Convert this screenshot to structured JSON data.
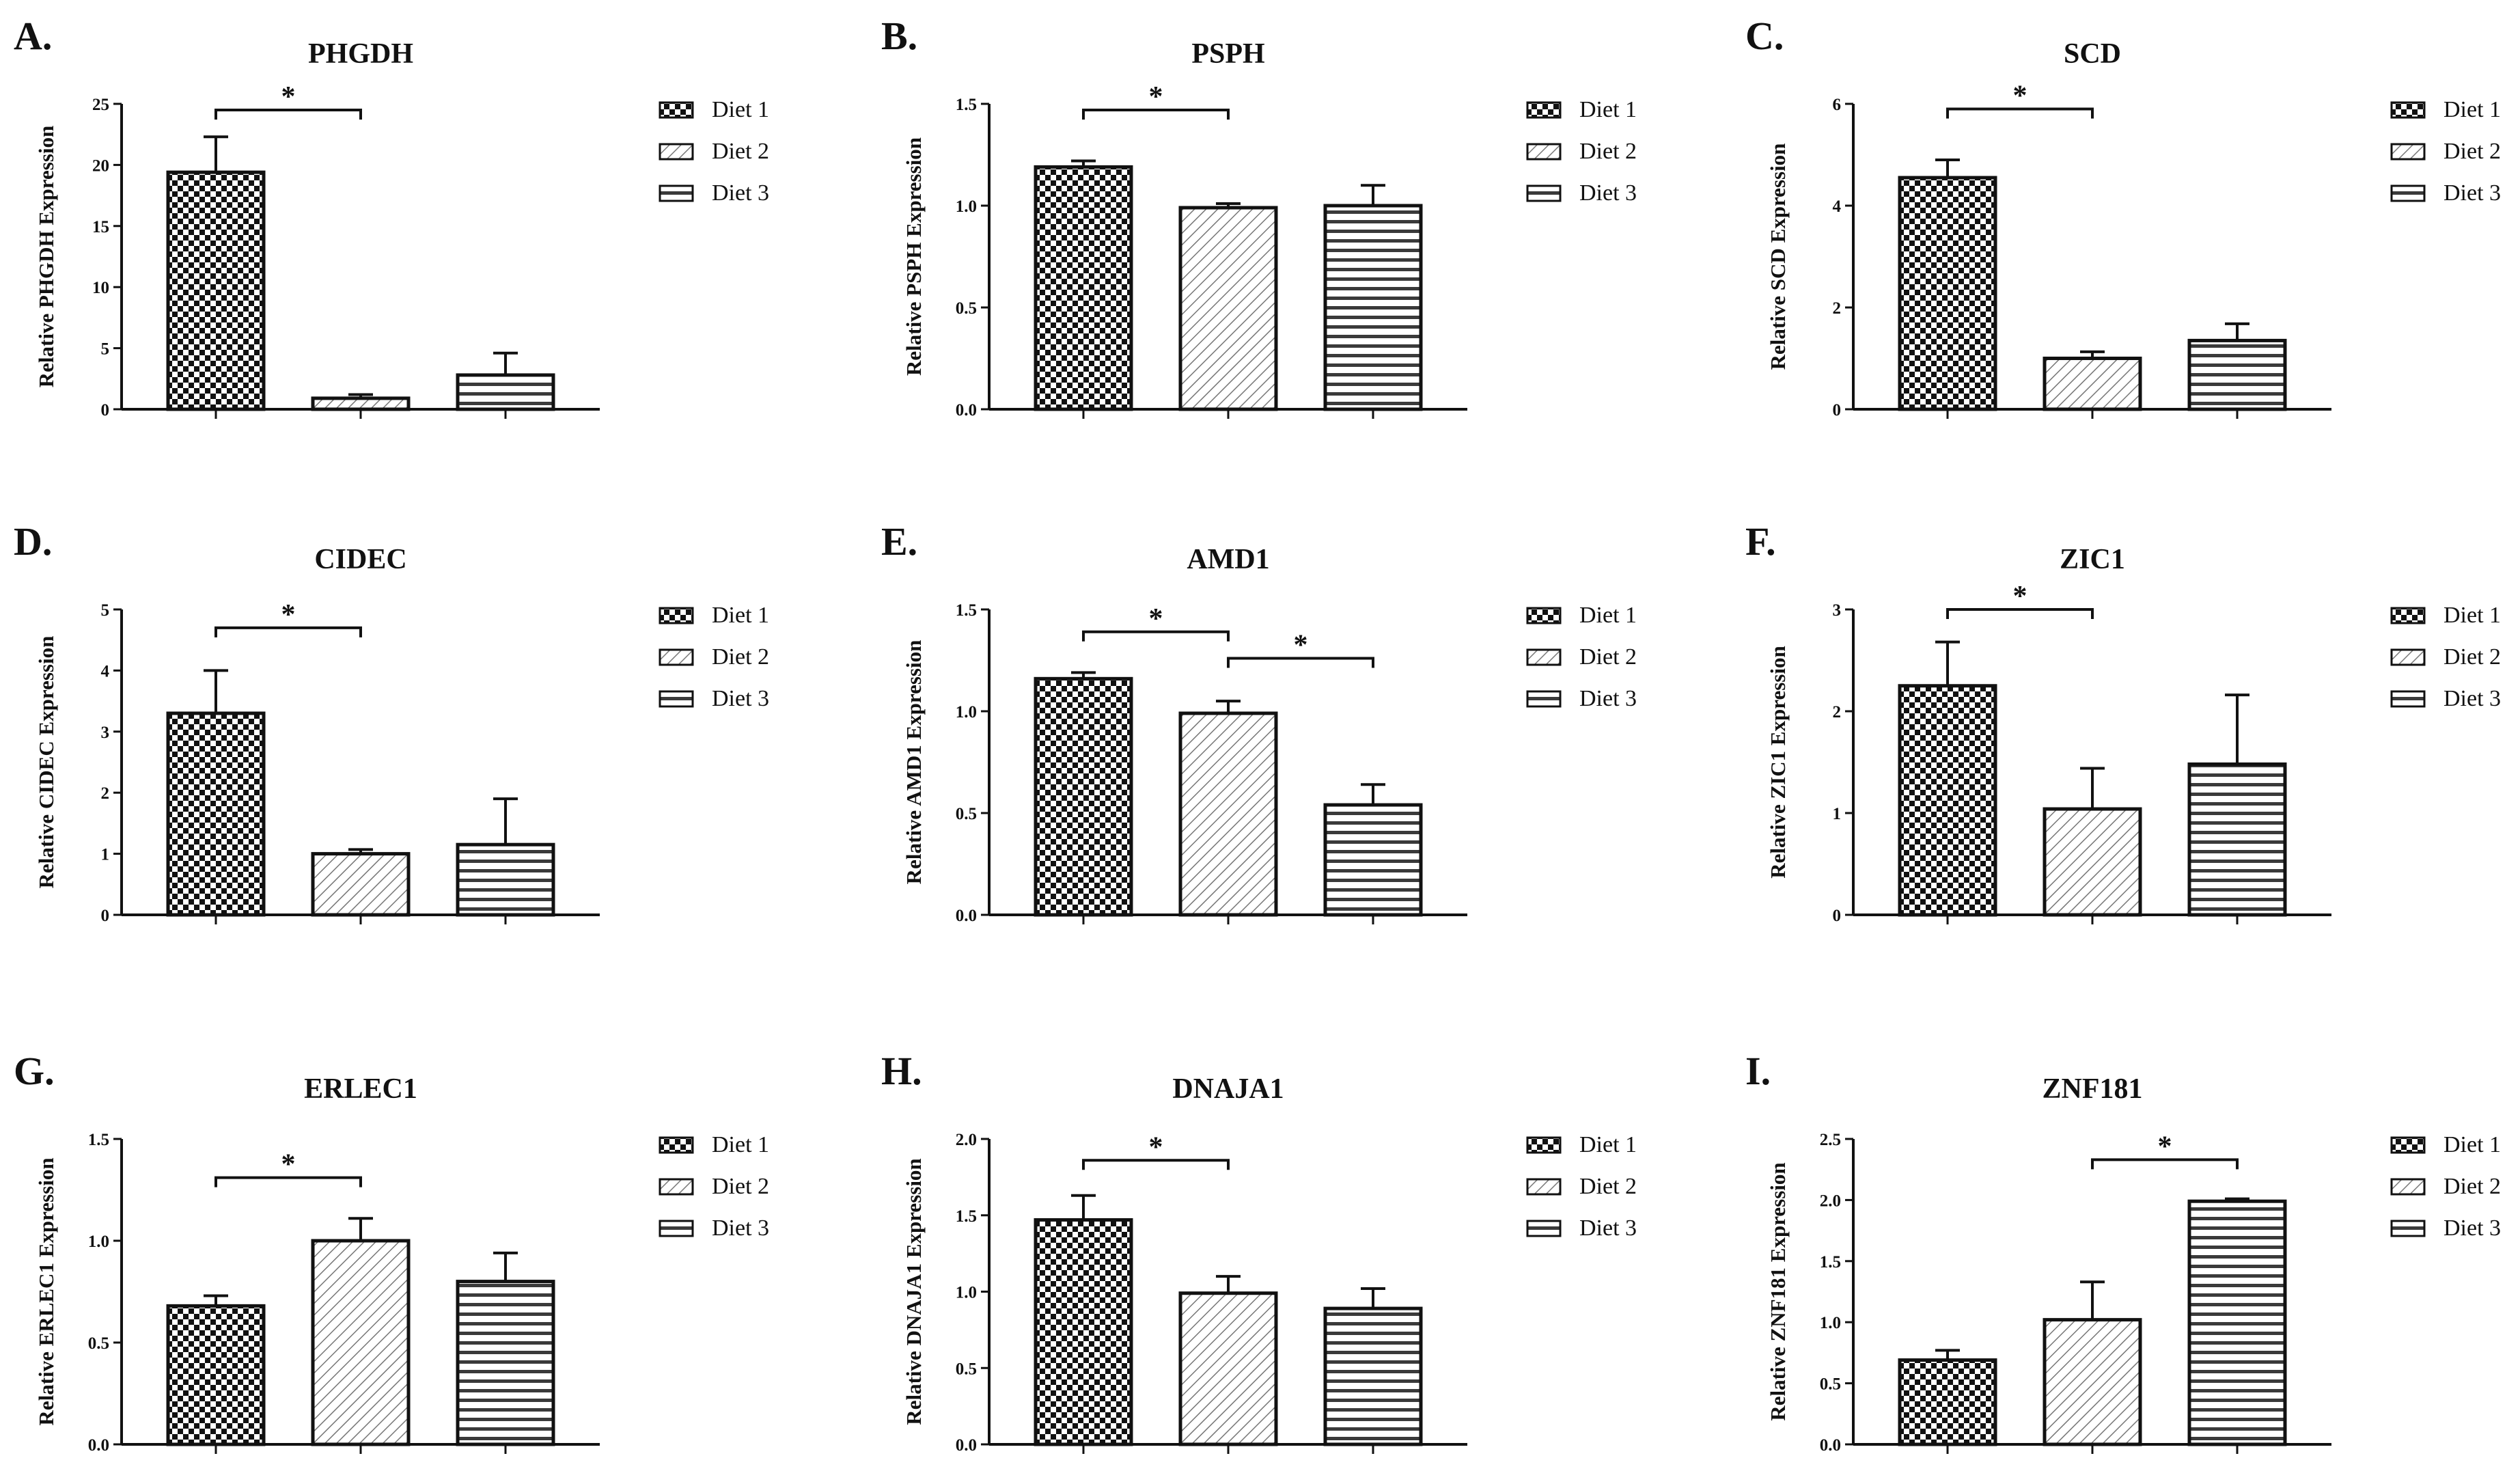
{
  "chart_data": [
    {
      "type": "bar",
      "letter": "A.",
      "title": "PHGDH",
      "ylabel": "Relative PHGDH Expression",
      "ylim": [
        0,
        25
      ],
      "yticks": [
        0,
        5,
        10,
        15,
        20,
        25
      ],
      "categories": [
        "Diet 1",
        "Diet 2",
        "Diet 3"
      ],
      "values": [
        19.4,
        0.9,
        2.8
      ],
      "errors": [
        2.9,
        0.3,
        1.8
      ],
      "significance": [
        {
          "from": 0,
          "to": 1,
          "label": "*",
          "y": 24.5
        }
      ]
    },
    {
      "type": "bar",
      "letter": "B.",
      "title": "PSPH",
      "ylabel": "Relative PSPH Expression",
      "ylim": [
        0,
        1.5
      ],
      "yticks": [
        "0.0",
        "0.5",
        "1.0",
        "1.5"
      ],
      "categories": [
        "Diet 1",
        "Diet 2",
        "Diet 3"
      ],
      "values": [
        1.19,
        0.99,
        1.0
      ],
      "errors": [
        0.03,
        0.02,
        0.1
      ],
      "significance": [
        {
          "from": 0,
          "to": 1,
          "label": "*",
          "y": 1.47
        }
      ]
    },
    {
      "type": "bar",
      "letter": "C.",
      "title": "SCD",
      "ylabel": "Relative SCD Expression",
      "ylim": [
        0,
        6
      ],
      "yticks": [
        0,
        2,
        4,
        6
      ],
      "categories": [
        "Diet 1",
        "Diet 2",
        "Diet 3"
      ],
      "values": [
        4.55,
        1.0,
        1.35
      ],
      "errors": [
        0.35,
        0.13,
        0.33
      ],
      "significance": [
        {
          "from": 0,
          "to": 1,
          "label": "*",
          "y": 5.9
        }
      ]
    },
    {
      "type": "bar",
      "letter": "D.",
      "title": "CIDEC",
      "ylabel": "Relative CIDEC Expression",
      "ylim": [
        0,
        5
      ],
      "yticks": [
        0,
        1,
        2,
        3,
        4,
        5
      ],
      "categories": [
        "Diet 1",
        "Diet 2",
        "Diet 3"
      ],
      "values": [
        3.3,
        1.0,
        1.15
      ],
      "errors": [
        0.7,
        0.07,
        0.75
      ],
      "significance": [
        {
          "from": 0,
          "to": 1,
          "label": "*",
          "y": 4.7
        }
      ]
    },
    {
      "type": "bar",
      "letter": "E.",
      "title": "AMD1",
      "ylabel": "Relative AMD1 Expression",
      "ylim": [
        0,
        1.5
      ],
      "yticks": [
        "0.0",
        "0.5",
        "1.0",
        "1.5"
      ],
      "categories": [
        "Diet 1",
        "Diet 2",
        "Diet 3"
      ],
      "values": [
        1.16,
        0.99,
        0.54
      ],
      "errors": [
        0.03,
        0.06,
        0.1
      ],
      "significance": [
        {
          "from": 0,
          "to": 1,
          "label": "*",
          "y": 1.39
        },
        {
          "from": 1,
          "to": 2,
          "label": "*",
          "y": 1.26
        }
      ]
    },
    {
      "type": "bar",
      "letter": "F.",
      "title": "ZIC1",
      "ylabel": "Relative ZIC1 Expression",
      "ylim": [
        0,
        3
      ],
      "yticks": [
        0,
        1,
        2,
        3
      ],
      "categories": [
        "Diet 1",
        "Diet 2",
        "Diet 3"
      ],
      "values": [
        2.25,
        1.04,
        1.48
      ],
      "errors": [
        0.43,
        0.4,
        0.68
      ],
      "significance": [
        {
          "from": 0,
          "to": 1,
          "label": "*",
          "y": 3.0
        }
      ]
    },
    {
      "type": "bar",
      "letter": "G.",
      "title": "ERLEC1",
      "ylabel": "Relative ERLEC1 Expression",
      "ylim": [
        0,
        1.5
      ],
      "yticks": [
        "0.0",
        "0.5",
        "1.0",
        "1.5"
      ],
      "categories": [
        "Diet 1",
        "Diet 2",
        "Diet 3"
      ],
      "values": [
        0.68,
        1.0,
        0.8
      ],
      "errors": [
        0.05,
        0.11,
        0.14
      ],
      "significance": [
        {
          "from": 0,
          "to": 1,
          "label": "*",
          "y": 1.31
        }
      ]
    },
    {
      "type": "bar",
      "letter": "H.",
      "title": "DNAJA1",
      "ylabel": "Relative DNAJA1 Expression",
      "ylim": [
        0,
        2.0
      ],
      "yticks": [
        "0.0",
        "0.5",
        "1.0",
        "1.5",
        "2.0"
      ],
      "categories": [
        "Diet 1",
        "Diet 2",
        "Diet 3"
      ],
      "values": [
        1.47,
        0.99,
        0.89
      ],
      "errors": [
        0.16,
        0.11,
        0.13
      ],
      "significance": [
        {
          "from": 0,
          "to": 1,
          "label": "*",
          "y": 1.86
        }
      ]
    },
    {
      "type": "bar",
      "letter": "I.",
      "title": "ZNF181",
      "ylabel": "Relative ZNF181 Expression",
      "ylim": [
        0,
        2.5
      ],
      "yticks": [
        "0.0",
        "0.5",
        "1.0",
        "1.5",
        "2.0",
        "2.5"
      ],
      "categories": [
        "Diet 1",
        "Diet 2",
        "Diet 3"
      ],
      "values": [
        0.69,
        1.02,
        1.99
      ],
      "errors": [
        0.08,
        0.31,
        0.02
      ],
      "significance": [
        {
          "from": 1,
          "to": 2,
          "label": "*",
          "y": 2.33
        }
      ]
    }
  ]
}
